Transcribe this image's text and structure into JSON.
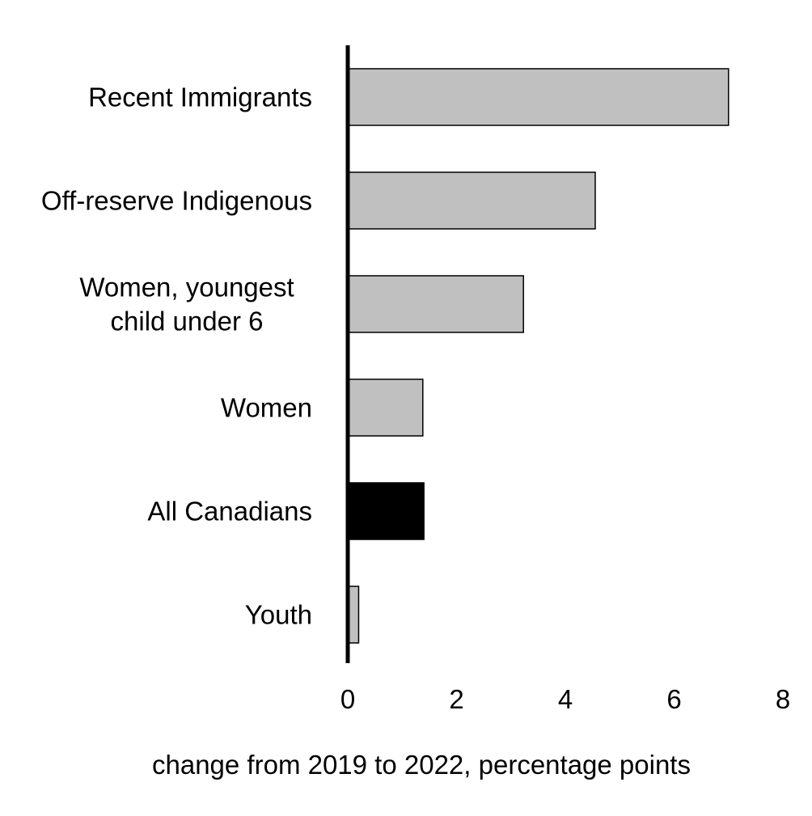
{
  "chart_data": {
    "type": "bar",
    "orientation": "horizontal",
    "categories": [
      "Recent Immigrants",
      "Off-reserve Indigenous",
      "Women, youngest child under 6",
      "Women",
      "All Canadians",
      "Youth"
    ],
    "category_label_lines": [
      [
        "Recent Immigrants"
      ],
      [
        "Off-reserve Indigenous"
      ],
      [
        "Women, youngest",
        "child under 6"
      ],
      [
        "Women"
      ],
      [
        "All Canadians"
      ],
      [
        "Youth"
      ]
    ],
    "values": [
      7.0,
      4.55,
      3.23,
      1.38,
      1.4,
      0.2
    ],
    "bar_colors": [
      "#c0c0c0",
      "#c0c0c0",
      "#c0c0c0",
      "#c0c0c0",
      "#000000",
      "#c0c0c0"
    ],
    "title": "",
    "xlabel": "change from 2019 to 2022, percentage points",
    "ylabel": "",
    "xlim": [
      0,
      8
    ],
    "xticks": [
      0,
      2,
      4,
      6,
      8
    ],
    "xtick_labels": [
      "0",
      "2",
      "4",
      "6",
      "8"
    ],
    "grid": false,
    "legend": "none",
    "colors": {
      "default_bar": "#c0c0c0",
      "highlight_bar": "#000000",
      "axis": "#000000"
    }
  }
}
